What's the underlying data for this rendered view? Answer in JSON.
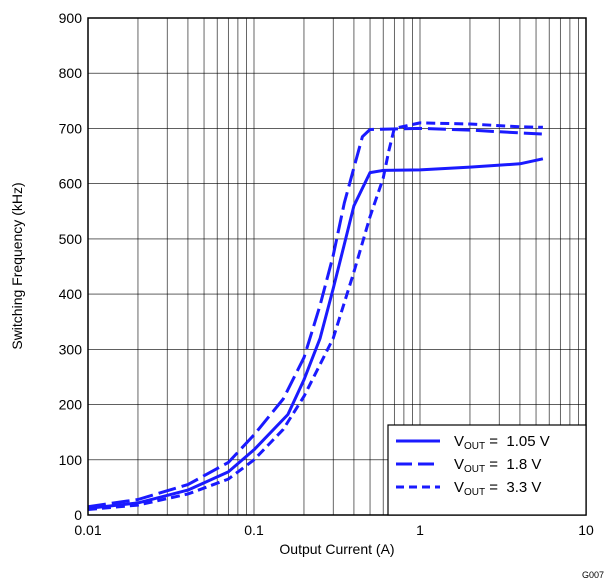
{
  "chart_data": {
    "type": "line",
    "title": "",
    "xlabel": "Output Current (A)",
    "ylabel": "Switching Frequency (kHz)",
    "xscale": "log",
    "xlim": [
      0.01,
      10
    ],
    "ylim": [
      0,
      900
    ],
    "x_ticks": [
      0.01,
      0.1,
      1,
      10
    ],
    "x_tick_labels": [
      "0.01",
      "0.1",
      "1",
      "10"
    ],
    "y_ticks": [
      0,
      100,
      200,
      300,
      400,
      500,
      600,
      700,
      800,
      900
    ],
    "y_tick_labels": [
      "0",
      "100",
      "200",
      "300",
      "400",
      "500",
      "600",
      "700",
      "800",
      "900"
    ],
    "grid": true,
    "legend_position": "bottom-right",
    "figure_id": "G007",
    "series": [
      {
        "name_main": "V",
        "name_sub": "OUT",
        "name_rest": " =  1.05 V",
        "color": "#1a1aff",
        "dash": "solid",
        "points": [
          [
            0.01,
            12
          ],
          [
            0.02,
            22
          ],
          [
            0.04,
            45
          ],
          [
            0.07,
            78
          ],
          [
            0.1,
            118
          ],
          [
            0.16,
            182
          ],
          [
            0.2,
            245
          ],
          [
            0.25,
            320
          ],
          [
            0.3,
            410
          ],
          [
            0.35,
            490
          ],
          [
            0.4,
            560
          ],
          [
            0.5,
            620
          ],
          [
            0.6,
            624
          ],
          [
            1,
            625
          ],
          [
            2,
            630
          ],
          [
            4,
            636
          ],
          [
            5.5,
            645
          ]
        ]
      },
      {
        "name_main": "V",
        "name_sub": "OUT",
        "name_rest": " =  1.8 V",
        "color": "#1a1aff",
        "dash": "long",
        "points": [
          [
            0.01,
            15
          ],
          [
            0.02,
            28
          ],
          [
            0.04,
            55
          ],
          [
            0.07,
            95
          ],
          [
            0.1,
            145
          ],
          [
            0.15,
            210
          ],
          [
            0.2,
            285
          ],
          [
            0.25,
            380
          ],
          [
            0.3,
            470
          ],
          [
            0.35,
            565
          ],
          [
            0.45,
            685
          ],
          [
            0.5,
            698
          ],
          [
            1,
            700
          ],
          [
            2,
            697
          ],
          [
            4,
            692
          ],
          [
            5.5,
            690
          ]
        ]
      },
      {
        "name_main": "V",
        "name_sub": "OUT",
        "name_rest": " =  3.3 V",
        "color": "#1a1aff",
        "dash": "short",
        "points": [
          [
            0.01,
            10
          ],
          [
            0.02,
            18
          ],
          [
            0.04,
            38
          ],
          [
            0.07,
            65
          ],
          [
            0.1,
            100
          ],
          [
            0.15,
            155
          ],
          [
            0.2,
            215
          ],
          [
            0.3,
            320
          ],
          [
            0.4,
            440
          ],
          [
            0.5,
            540
          ],
          [
            0.6,
            610
          ],
          [
            0.65,
            660
          ],
          [
            0.7,
            700
          ],
          [
            1,
            710
          ],
          [
            2,
            708
          ],
          [
            4,
            703
          ],
          [
            5.5,
            702
          ]
        ]
      }
    ]
  }
}
